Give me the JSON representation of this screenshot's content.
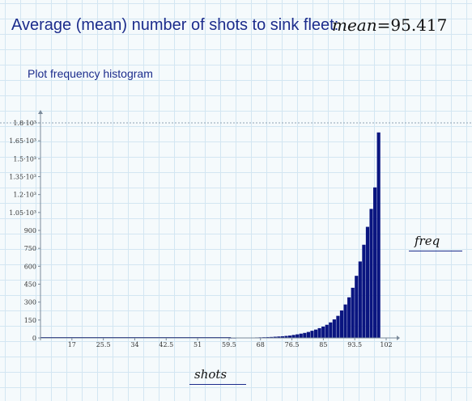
{
  "worksheet": {
    "heading": "Average (mean) number of shots to sink fleet:",
    "mean_var": "mean",
    "mean_equals": "=",
    "mean_value": "95.417",
    "subheading": "Plot frequency histogram",
    "y_variable": "freq",
    "x_variable": "shots"
  },
  "colors": {
    "bar": "#0a1580",
    "text": "#1c2c8c",
    "axis": "#7a8a9a",
    "limit": "#8fa3b3"
  },
  "chart_data": {
    "type": "bar",
    "xlabel": "shots",
    "ylabel": "freq",
    "xlim": [
      8.5,
      102
    ],
    "ylim": [
      0,
      1800
    ],
    "x_ticks": [
      17,
      25.5,
      34,
      42.5,
      51,
      59.5,
      68,
      76.5,
      85,
      93.5,
      102
    ],
    "x_tick_labels": [
      "17",
      "25.5",
      "34",
      "42.5",
      "51",
      "59.5",
      "68",
      "76.5",
      "85",
      "93.5",
      "102"
    ],
    "y_ticks": [
      0,
      150,
      300,
      450,
      600,
      750,
      900,
      1050,
      1200,
      1350,
      1500,
      1650,
      1800
    ],
    "y_tick_labels": [
      "0",
      "150",
      "300",
      "450",
      "600",
      "750",
      "900",
      "1.05·10³",
      "1.2·10³",
      "1.35·10³",
      "1.5·10³",
      "1.65·10³",
      "1.8·10³"
    ],
    "x": [
      60,
      61,
      62,
      63,
      64,
      65,
      66,
      67,
      68,
      69,
      70,
      71,
      72,
      73,
      74,
      75,
      76,
      77,
      78,
      79,
      80,
      81,
      82,
      83,
      84,
      85,
      86,
      87,
      88,
      89,
      90,
      91,
      92,
      93,
      94,
      95,
      96,
      97,
      98,
      99,
      100
    ],
    "values": [
      1,
      1,
      2,
      2,
      2,
      3,
      3,
      4,
      5,
      6,
      7,
      8,
      10,
      12,
      14,
      17,
      20,
      25,
      30,
      36,
      42,
      50,
      60,
      70,
      82,
      95,
      110,
      130,
      155,
      185,
      230,
      280,
      340,
      420,
      520,
      640,
      780,
      930,
      1080,
      1260,
      1720
    ]
  }
}
